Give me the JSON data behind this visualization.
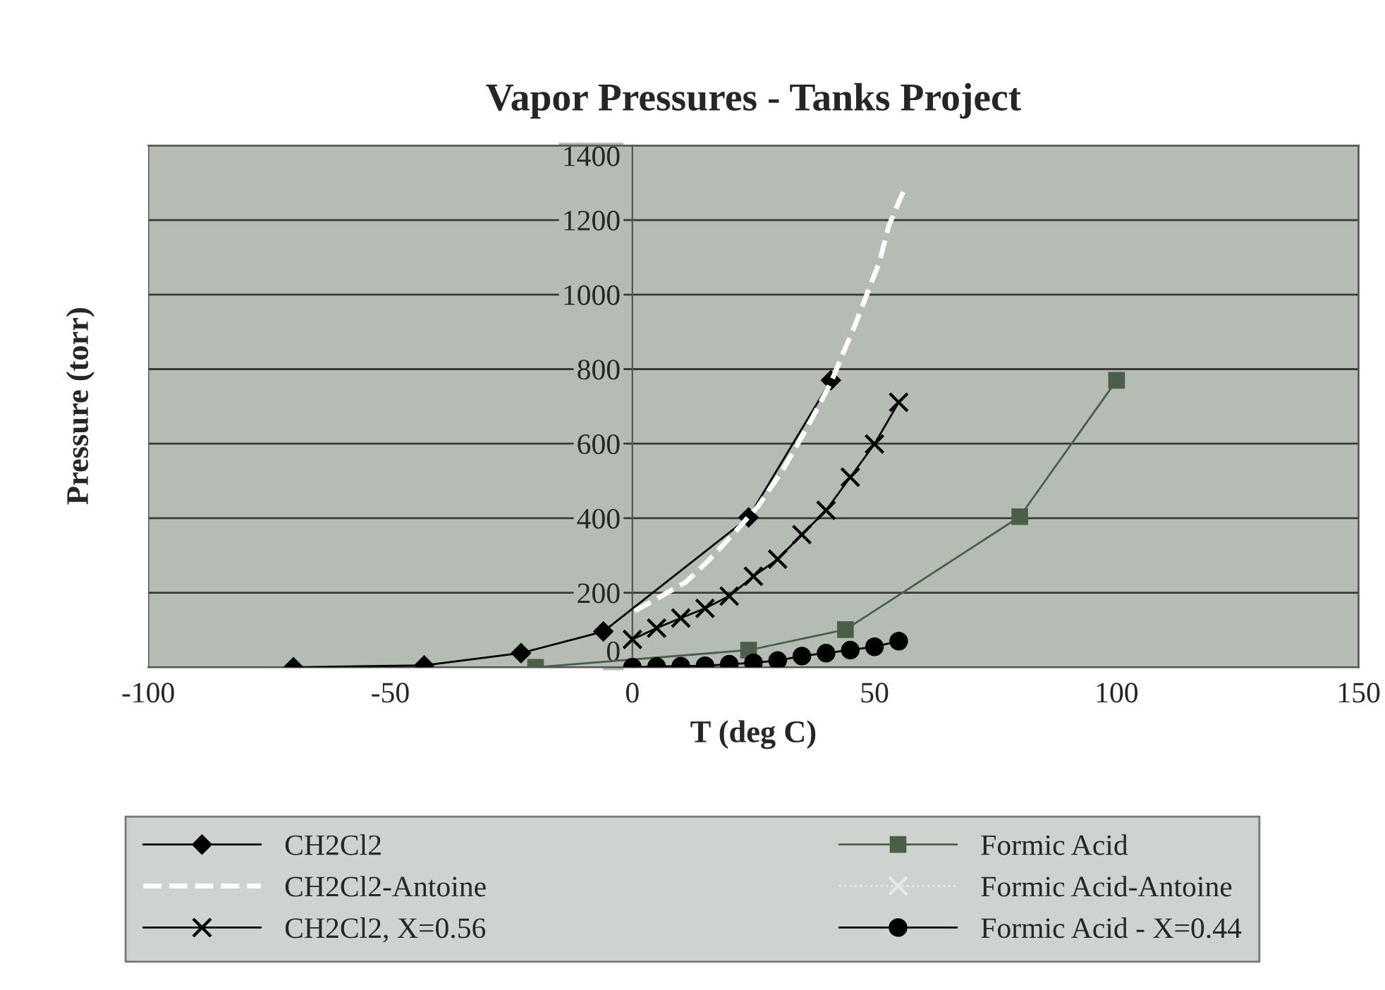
{
  "chart_data": {
    "type": "line",
    "title": "Vapor Pressures - Tanks Project",
    "xlabel": "T (deg C)",
    "ylabel": "Pressure (torr)",
    "xlim": [
      -100,
      150
    ],
    "xticks": [
      -100,
      -50,
      0,
      50,
      100,
      150
    ],
    "ylim": [
      0,
      1400
    ],
    "yticks": [
      0,
      200,
      400,
      600,
      800,
      1000,
      1200,
      1400
    ],
    "grid": "y",
    "legend": "bottom",
    "series": [
      {
        "name": "CH2Cl2",
        "color": "#000000",
        "marker": "diamond",
        "line_style": "solid",
        "x": [
          -70,
          -43,
          -23,
          -6,
          24,
          41
        ],
        "values": [
          0,
          5,
          38,
          96,
          402,
          770
        ]
      },
      {
        "name": "CH2Cl2-Antoine",
        "color": "#ffffff",
        "marker": "none",
        "line_style": "dashed",
        "x": [
          0.5,
          6,
          11,
          16,
          21,
          26,
          31,
          36,
          41,
          46,
          51,
          53,
          56
        ],
        "values": [
          151,
          191,
          228,
          290,
          360,
          433,
          528,
          641,
          764,
          919,
          1087,
          1186,
          1278
        ]
      },
      {
        "name": "CH2Cl2, X=0.56",
        "color": "#000000",
        "marker": "cross",
        "line_style": "solid",
        "x": [
          0,
          5,
          10,
          15,
          20,
          25,
          30,
          35,
          40,
          45,
          50,
          55
        ],
        "values": [
          75,
          105,
          132,
          158,
          191,
          244,
          290,
          356,
          421,
          510,
          599,
          711
        ]
      },
      {
        "name": "Formic Acid",
        "color": "#4a5e4a",
        "marker": "square",
        "line_style": "solid",
        "x": [
          -20,
          24,
          44,
          80,
          100
        ],
        "values": [
          0,
          46,
          101,
          404,
          770
        ]
      },
      {
        "name": "Formic Acid-Antoine",
        "color": "#e8ece8",
        "marker": "cross",
        "line_style": "dotted"
      },
      {
        "name": "Formic Acid - X=0.44",
        "color": "#000000",
        "marker": "circle",
        "line_style": "solid",
        "x": [
          0,
          5,
          10,
          15,
          20,
          25,
          30,
          35,
          40,
          45,
          50,
          55
        ],
        "values": [
          0,
          2,
          3,
          4,
          8,
          12,
          18,
          30,
          38,
          46,
          55,
          70
        ]
      }
    ]
  }
}
